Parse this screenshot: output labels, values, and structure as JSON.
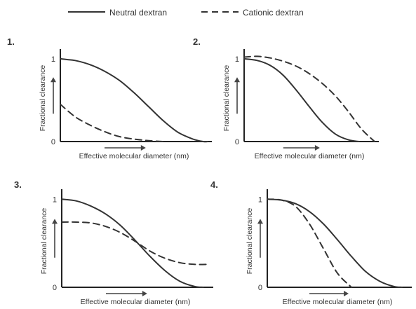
{
  "legend": [
    {
      "name": "Neutral dextran",
      "style": "solid"
    },
    {
      "name": "Cationic dextran",
      "style": "dashed"
    }
  ],
  "chart_data": [
    {
      "panel": "1.",
      "type": "line",
      "xlabel": "Effective molecular diameter (nm)",
      "ylabel": "Fractional clearance",
      "yticks": [
        "1",
        "0"
      ],
      "ylim": [
        0,
        1.05
      ],
      "grid": false,
      "legend_position": "top",
      "series": [
        {
          "name": "Neutral dextran",
          "style": "solid",
          "x": [
            0,
            0.05,
            0.1,
            0.2,
            0.3,
            0.4,
            0.5,
            0.6,
            0.7,
            0.8,
            0.9,
            0.97,
            1.0
          ],
          "y": [
            1.0,
            0.99,
            0.98,
            0.93,
            0.85,
            0.74,
            0.59,
            0.42,
            0.25,
            0.11,
            0.03,
            0.0,
            0.0
          ]
        },
        {
          "name": "Cationic dextran",
          "style": "dashed",
          "x": [
            0,
            0.1,
            0.2,
            0.3,
            0.4,
            0.5,
            0.6,
            0.7
          ],
          "y": [
            0.45,
            0.3,
            0.2,
            0.12,
            0.06,
            0.03,
            0.01,
            0.0
          ]
        }
      ]
    },
    {
      "panel": "2.",
      "type": "line",
      "xlabel": "Effective molecular diameter (nm)",
      "ylabel": "Fractional clearance",
      "yticks": [
        "1",
        "0"
      ],
      "ylim": [
        0,
        1.05
      ],
      "grid": false,
      "legend_position": "top",
      "series": [
        {
          "name": "Neutral dextran",
          "style": "solid",
          "x": [
            0,
            0.1,
            0.2,
            0.3,
            0.4,
            0.5,
            0.6,
            0.7,
            0.8,
            0.88
          ],
          "y": [
            1.0,
            0.98,
            0.92,
            0.8,
            0.62,
            0.42,
            0.23,
            0.09,
            0.02,
            0.0
          ]
        },
        {
          "name": "Cationic dextran",
          "style": "dashed",
          "x": [
            0,
            0.1,
            0.2,
            0.3,
            0.4,
            0.5,
            0.6,
            0.7,
            0.8,
            0.9,
            1.0
          ],
          "y": [
            1.02,
            1.03,
            1.01,
            0.97,
            0.91,
            0.82,
            0.7,
            0.55,
            0.36,
            0.15,
            0.0
          ]
        }
      ]
    },
    {
      "panel": "3.",
      "type": "line",
      "xlabel": "Effective molecular diameter (nm)",
      "ylabel": "Fractional clearance",
      "yticks": [
        "1",
        "0"
      ],
      "ylim": [
        0,
        1.05
      ],
      "grid": false,
      "legend_position": "top",
      "series": [
        {
          "name": "Neutral dextran",
          "style": "solid",
          "x": [
            0,
            0.1,
            0.2,
            0.3,
            0.4,
            0.5,
            0.6,
            0.7,
            0.8,
            0.9,
            0.96
          ],
          "y": [
            1.0,
            0.98,
            0.92,
            0.83,
            0.7,
            0.53,
            0.35,
            0.19,
            0.07,
            0.01,
            0.0
          ]
        },
        {
          "name": "Cationic dextran",
          "style": "dashed",
          "x": [
            0,
            0.1,
            0.2,
            0.3,
            0.4,
            0.5,
            0.6,
            0.7,
            0.8,
            0.9,
            1.0
          ],
          "y": [
            0.74,
            0.74,
            0.73,
            0.69,
            0.62,
            0.52,
            0.41,
            0.33,
            0.28,
            0.26,
            0.26
          ]
        }
      ]
    },
    {
      "panel": "4.",
      "type": "line",
      "xlabel": "Effective molecular diameter (nm)",
      "ylabel": "Fractional clearance",
      "yticks": [
        "1",
        "0"
      ],
      "ylim": [
        0,
        1.05
      ],
      "grid": false,
      "legend_position": "top",
      "series": [
        {
          "name": "Neutral dextran",
          "style": "solid",
          "x": [
            0,
            0.1,
            0.2,
            0.3,
            0.4,
            0.5,
            0.6,
            0.7,
            0.8,
            0.9,
            0.96
          ],
          "y": [
            1.0,
            0.99,
            0.95,
            0.86,
            0.72,
            0.54,
            0.35,
            0.18,
            0.07,
            0.01,
            0.0
          ]
        },
        {
          "name": "Cationic dextran",
          "style": "dashed",
          "x": [
            0,
            0.1,
            0.2,
            0.3,
            0.4,
            0.5,
            0.6
          ],
          "y": [
            1.0,
            0.99,
            0.92,
            0.72,
            0.44,
            0.16,
            0.0
          ]
        }
      ]
    }
  ]
}
